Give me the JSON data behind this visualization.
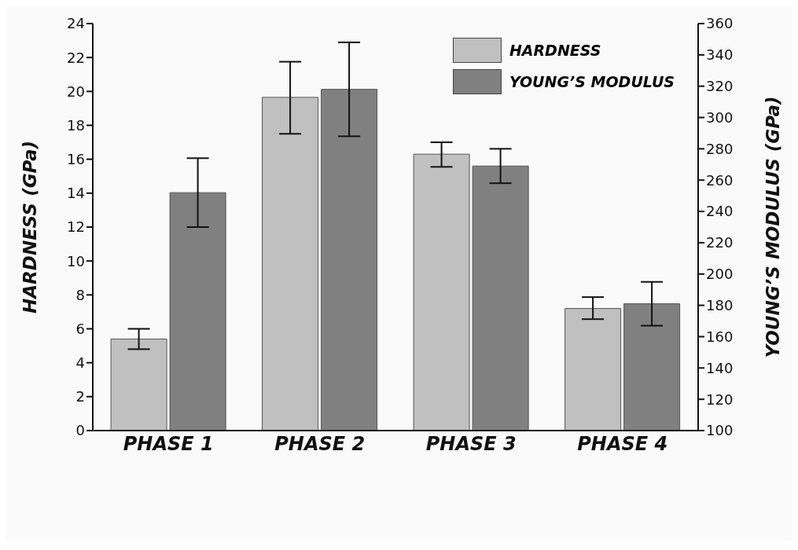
{
  "chart_data": {
    "type": "bar",
    "categories": [
      "PHASE 1",
      "PHASE 2",
      "PHASE 3",
      "PHASE 4"
    ],
    "ylabel": "HARDNESS (GPa)",
    "y2label": "YOUNG’S MODULUS (GPa)",
    "series": [
      {
        "name": "HARDNESS",
        "color": "#c0c0c0",
        "values": [
          5.4,
          19.65,
          16.3,
          7.2
        ],
        "errors": [
          [
            4.8,
            6.0
          ],
          [
            17.5,
            21.75
          ],
          [
            15.55,
            17.0
          ],
          [
            6.57,
            7.87
          ]
        ]
      },
      {
        "name": "YOUNG’S MODULUS",
        "color": "#808080",
        "axis": "y2",
        "values": [
          252,
          318,
          269,
          181
        ],
        "errors": [
          [
            230,
            274
          ],
          [
            288,
            348
          ],
          [
            258,
            280
          ],
          [
            167,
            195
          ]
        ]
      }
    ],
    "ylim": [
      0,
      24
    ],
    "yticks": [
      0,
      2,
      4,
      6,
      8,
      10,
      12,
      14,
      16,
      18,
      20,
      22,
      24
    ],
    "y2lim": [
      100,
      360
    ],
    "y2ticks": [
      100,
      120,
      140,
      160,
      180,
      200,
      220,
      240,
      260,
      280,
      300,
      320,
      340,
      360
    ],
    "legend": "top right",
    "grid": false
  }
}
